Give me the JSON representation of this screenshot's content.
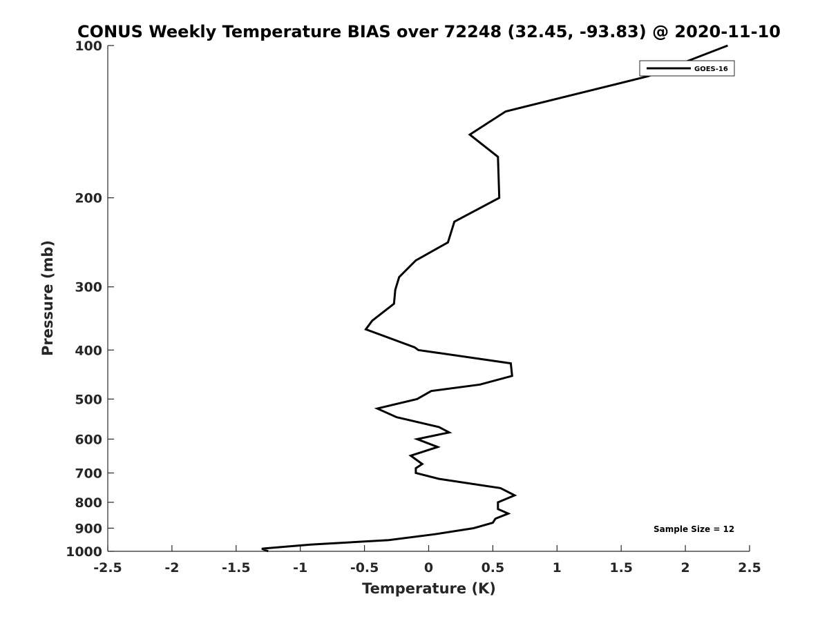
{
  "chart_data": {
    "type": "line",
    "title": "CONUS Weekly Temperature BIAS over 72248 (32.45, -93.83) @ 2020-11-10",
    "xlabel": "Temperature (K)",
    "ylabel": "Pressure (mb)",
    "xlim": [
      -2.5,
      2.5
    ],
    "ylim": [
      100,
      1000
    ],
    "y_scale": "log",
    "y_reversed": true,
    "x_ticks": [
      "-2.5",
      "-2",
      "-1.5",
      "-1",
      "-0.5",
      "0",
      "0.5",
      "1",
      "1.5",
      "2",
      "2.5"
    ],
    "y_ticks": [
      "100",
      "200",
      "300",
      "400",
      "500",
      "600",
      "700",
      "800",
      "900",
      "1000"
    ],
    "grid": false,
    "legend_position": "top-right",
    "annotation": "Sample Size = 12",
    "series": [
      {
        "name": "GOES-16",
        "color": "#000000",
        "points": [
          {
            "t": 2.33,
            "p": 100
          },
          {
            "t": 1.71,
            "p": 115
          },
          {
            "t": 0.6,
            "p": 135
          },
          {
            "t": 0.32,
            "p": 150
          },
          {
            "t": 0.54,
            "p": 166
          },
          {
            "t": 0.55,
            "p": 200
          },
          {
            "t": 0.2,
            "p": 223
          },
          {
            "t": 0.15,
            "p": 245
          },
          {
            "t": -0.1,
            "p": 266
          },
          {
            "t": -0.23,
            "p": 287
          },
          {
            "t": -0.26,
            "p": 304
          },
          {
            "t": -0.27,
            "p": 324
          },
          {
            "t": -0.44,
            "p": 350
          },
          {
            "t": -0.49,
            "p": 364
          },
          {
            "t": -0.11,
            "p": 395
          },
          {
            "t": -0.08,
            "p": 400
          },
          {
            "t": 0.64,
            "p": 425
          },
          {
            "t": 0.65,
            "p": 450
          },
          {
            "t": 0.4,
            "p": 468
          },
          {
            "t": 0.02,
            "p": 482
          },
          {
            "t": -0.09,
            "p": 500
          },
          {
            "t": -0.4,
            "p": 522
          },
          {
            "t": -0.25,
            "p": 543
          },
          {
            "t": 0.08,
            "p": 568
          },
          {
            "t": 0.16,
            "p": 582
          },
          {
            "t": -0.09,
            "p": 600
          },
          {
            "t": 0.07,
            "p": 622
          },
          {
            "t": -0.14,
            "p": 647
          },
          {
            "t": -0.05,
            "p": 672
          },
          {
            "t": -0.1,
            "p": 685
          },
          {
            "t": -0.1,
            "p": 700
          },
          {
            "t": 0.08,
            "p": 719
          },
          {
            "t": 0.56,
            "p": 750
          },
          {
            "t": 0.67,
            "p": 775
          },
          {
            "t": 0.54,
            "p": 800
          },
          {
            "t": 0.54,
            "p": 825
          },
          {
            "t": 0.62,
            "p": 842
          },
          {
            "t": 0.52,
            "p": 862
          },
          {
            "t": 0.5,
            "p": 878
          },
          {
            "t": 0.35,
            "p": 900
          },
          {
            "t": 0.05,
            "p": 925
          },
          {
            "t": -0.31,
            "p": 950
          },
          {
            "t": -0.92,
            "p": 970
          },
          {
            "t": -1.3,
            "p": 988
          },
          {
            "t": -1.25,
            "p": 1000
          }
        ]
      }
    ]
  }
}
